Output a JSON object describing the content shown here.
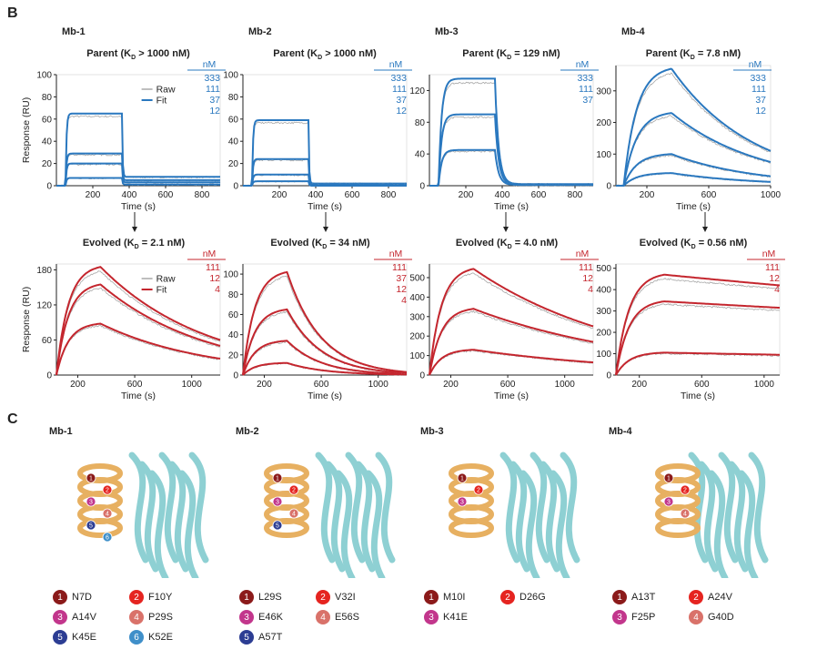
{
  "panel_b_label": "B",
  "panel_c_label": "C",
  "chart_data": [
    {
      "type": "line",
      "panel": "Mb-1 Parent",
      "header": "Mb-1",
      "title": "Parent (K_D > 1000 nM)",
      "xlabel": "Time (s)",
      "ylabel": "Response (RU)",
      "xlim": [
        0,
        900
      ],
      "ylim": [
        0,
        100
      ],
      "xticks": [
        200,
        400,
        600,
        800
      ],
      "yticks": [
        0,
        20,
        40,
        60,
        80,
        100
      ],
      "legend": [
        "Raw",
        "Fit"
      ],
      "conc_unit": "nM",
      "concentrations": [
        "333",
        "111",
        "37",
        "12"
      ],
      "assoc_end_s": 360,
      "kd_curve": "fast",
      "series": [
        {
          "name": "333",
          "plateau": 65,
          "tail": 8
        },
        {
          "name": "111",
          "plateau": 29,
          "tail": 5
        },
        {
          "name": "37",
          "plateau": 20,
          "tail": 3
        },
        {
          "name": "12",
          "plateau": 7,
          "tail": 1
        }
      ]
    },
    {
      "type": "line",
      "panel": "Mb-2 Parent",
      "header": "Mb-2",
      "title": "Parent (K_D > 1000 nM)",
      "xlabel": "Time (s)",
      "ylabel": "",
      "xlim": [
        0,
        900
      ],
      "ylim": [
        0,
        100
      ],
      "xticks": [
        200,
        400,
        600,
        800
      ],
      "yticks": [
        0,
        20,
        40,
        60,
        80,
        100
      ],
      "legend": [],
      "conc_unit": "nM",
      "concentrations": [
        "333",
        "111",
        "37",
        "12"
      ],
      "assoc_end_s": 360,
      "kd_curve": "fast",
      "series": [
        {
          "name": "333",
          "plateau": 59,
          "tail": 2
        },
        {
          "name": "111",
          "plateau": 24,
          "tail": 1
        },
        {
          "name": "37",
          "plateau": 10,
          "tail": 1
        },
        {
          "name": "12",
          "plateau": 4,
          "tail": 0
        }
      ]
    },
    {
      "type": "line",
      "panel": "Mb-3 Parent",
      "header": "Mb-3",
      "title": "Parent (K_D = 129 nM)",
      "xlabel": "Time (s)",
      "ylabel": "",
      "xlim": [
        0,
        900
      ],
      "ylim": [
        0,
        140
      ],
      "xticks": [
        200,
        400,
        600,
        800
      ],
      "yticks": [
        0,
        40,
        80,
        120
      ],
      "legend": [],
      "conc_unit": "nM",
      "concentrations": [
        "333",
        "111",
        "37"
      ],
      "assoc_end_s": 360,
      "kd_curve": "medium",
      "series": [
        {
          "name": "333",
          "plateau": 135,
          "tail": 2
        },
        {
          "name": "111",
          "plateau": 90,
          "tail": 1
        },
        {
          "name": "37",
          "plateau": 45,
          "tail": 1
        }
      ]
    },
    {
      "type": "line",
      "panel": "Mb-4 Parent",
      "header": "Mb-4",
      "title": "Parent (K_D = 7.8 nM)",
      "xlabel": "Time (s)",
      "ylabel": "",
      "xlim": [
        0,
        1000
      ],
      "ylim": [
        0,
        380
      ],
      "xticks": [
        200,
        600,
        1000
      ],
      "yticks": [
        0,
        100,
        200,
        300
      ],
      "legend": [],
      "conc_unit": "nM",
      "concentrations": [
        "333",
        "111",
        "37",
        "12"
      ],
      "assoc_end_s": 360,
      "kd_curve": "slow",
      "series": [
        {
          "name": "333",
          "peak": 370,
          "end": 110
        },
        {
          "name": "111",
          "peak": 230,
          "end": 75
        },
        {
          "name": "37",
          "peak": 100,
          "end": 30
        },
        {
          "name": "12",
          "peak": 40,
          "end": 12
        }
      ]
    },
    {
      "type": "line",
      "panel": "Mb-1 Evolved",
      "title": "Evolved (K_D = 2.1 nM)",
      "xlabel": "Time (s)",
      "ylabel": "Response (RU)",
      "xlim": [
        50,
        1200
      ],
      "ylim": [
        0,
        190
      ],
      "xticks": [
        200,
        600,
        1000
      ],
      "yticks": [
        0,
        60,
        120,
        180
      ],
      "legend": [
        "Raw",
        "Fit"
      ],
      "conc_unit": "nM",
      "concentrations": [
        "111",
        "12",
        "4"
      ],
      "assoc_end_s": 360,
      "kd_curve": "slow",
      "series": [
        {
          "name": "111",
          "peak": 185,
          "end": 60
        },
        {
          "name": "12",
          "peak": 155,
          "end": 50
        },
        {
          "name": "4",
          "peak": 88,
          "end": 28
        }
      ]
    },
    {
      "type": "line",
      "panel": "Mb-2 Evolved",
      "title": "Evolved (K_D = 34 nM)",
      "xlabel": "Time (s)",
      "ylabel": "",
      "xlim": [
        50,
        1200
      ],
      "ylim": [
        0,
        110
      ],
      "xticks": [
        200,
        600,
        1000
      ],
      "yticks": [
        0,
        20,
        40,
        60,
        80,
        100
      ],
      "legend": [],
      "conc_unit": "nM",
      "concentrations": [
        "111",
        "37",
        "12",
        "4"
      ],
      "assoc_end_s": 360,
      "kd_curve": "medium",
      "series": [
        {
          "name": "111",
          "peak": 102,
          "end": 3
        },
        {
          "name": "37",
          "peak": 65,
          "end": 2
        },
        {
          "name": "12",
          "peak": 34,
          "end": 1
        },
        {
          "name": "4",
          "peak": 12,
          "end": 0
        }
      ]
    },
    {
      "type": "line",
      "panel": "Mb-3 Evolved",
      "title": "Evolved (K_D = 4.0 nM)",
      "xlabel": "Time (s)",
      "ylabel": "",
      "xlim": [
        50,
        1200
      ],
      "ylim": [
        0,
        570
      ],
      "xticks": [
        200,
        600,
        1000
      ],
      "yticks": [
        0,
        100,
        200,
        300,
        400,
        500
      ],
      "legend": [],
      "conc_unit": "nM",
      "concentrations": [
        "111",
        "12",
        "4"
      ],
      "assoc_end_s": 360,
      "kd_curve": "slow",
      "series": [
        {
          "name": "111",
          "peak": 545,
          "end": 250
        },
        {
          "name": "12",
          "peak": 340,
          "end": 170
        },
        {
          "name": "4",
          "peak": 130,
          "end": 65
        }
      ]
    },
    {
      "type": "line",
      "panel": "Mb-4 Evolved",
      "title": "Evolved (K_D = 0.56 nM)",
      "xlabel": "Time (s)",
      "ylabel": "",
      "xlim": [
        50,
        1100
      ],
      "ylim": [
        0,
        520
      ],
      "xticks": [
        200,
        600,
        1000
      ],
      "yticks": [
        0,
        100,
        200,
        300,
        400,
        500
      ],
      "legend": [],
      "conc_unit": "nM",
      "concentrations": [
        "111",
        "12",
        "4"
      ],
      "assoc_end_s": 360,
      "kd_curve": "very_slow",
      "series": [
        {
          "name": "111",
          "peak": 470,
          "end": 420
        },
        {
          "name": "12",
          "peak": 345,
          "end": 315
        },
        {
          "name": "4",
          "peak": 105,
          "end": 95
        }
      ]
    }
  ],
  "structures": [
    {
      "title": "Mb-1",
      "mutations": [
        {
          "n": "1",
          "label": "N7D",
          "color": "#8b1a1a"
        },
        {
          "n": "2",
          "label": "F10Y",
          "color": "#e52420"
        },
        {
          "n": "3",
          "label": "A14V",
          "color": "#c2368c"
        },
        {
          "n": "4",
          "label": "P29S",
          "color": "#d9726a"
        },
        {
          "n": "5",
          "label": "K45E",
          "color": "#2c3d93"
        },
        {
          "n": "6",
          "label": "K52E",
          "color": "#3f8fc9"
        }
      ]
    },
    {
      "title": "Mb-2",
      "mutations": [
        {
          "n": "1",
          "label": "L29S",
          "color": "#8b1a1a"
        },
        {
          "n": "2",
          "label": "V32I",
          "color": "#e52420"
        },
        {
          "n": "3",
          "label": "E46K",
          "color": "#c2368c"
        },
        {
          "n": "4",
          "label": "E56S",
          "color": "#d9726a"
        },
        {
          "n": "5",
          "label": "A57T",
          "color": "#2c3d93"
        }
      ]
    },
    {
      "title": "Mb-3",
      "mutations": [
        {
          "n": "1",
          "label": "M10I",
          "color": "#8b1a1a"
        },
        {
          "n": "2",
          "label": "D26G",
          "color": "#e52420"
        },
        {
          "n": "3",
          "label": "K41E",
          "color": "#c2368c"
        }
      ]
    },
    {
      "title": "Mb-4",
      "mutations": [
        {
          "n": "1",
          "label": "A13T",
          "color": "#8b1a1a"
        },
        {
          "n": "2",
          "label": "A24V",
          "color": "#e52420"
        },
        {
          "n": "3",
          "label": "F25P",
          "color": "#c2368c"
        },
        {
          "n": "4",
          "label": "G40D",
          "color": "#d9726a"
        }
      ]
    }
  ],
  "colors": {
    "parent_fit": "#2a78bf",
    "evolved_fit": "#c4262e",
    "raw": "#a8a8a8",
    "binder": "#e7b061",
    "target": "#8ed0d3",
    "binder_dark": "#b98638",
    "target_dark": "#4fa7ae"
  }
}
